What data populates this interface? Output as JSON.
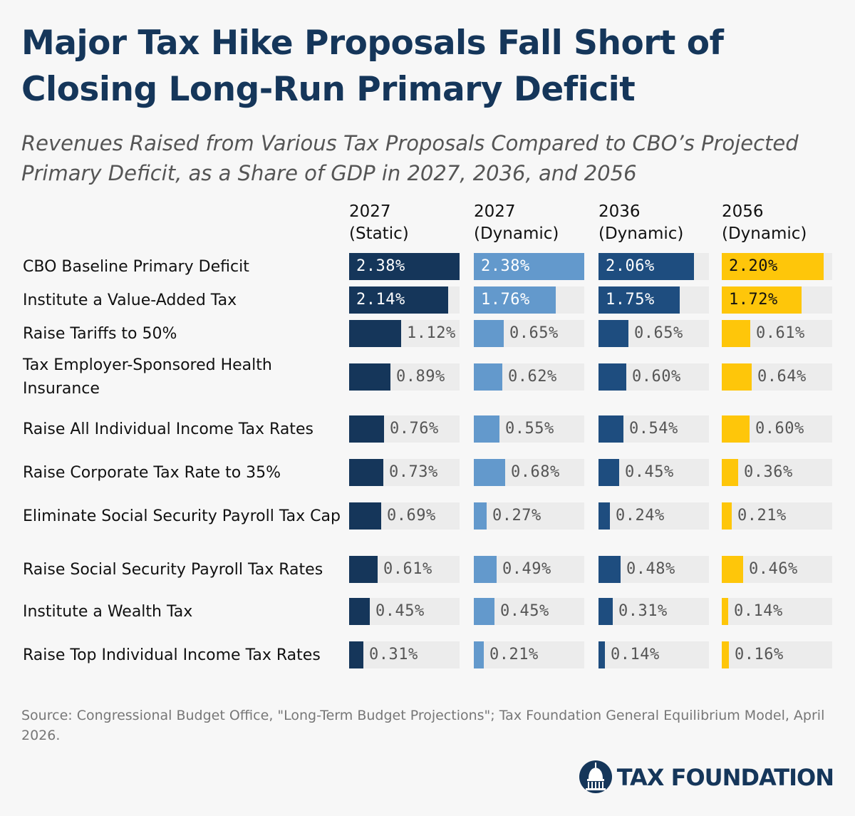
{
  "title": "Major Tax Hike Proposals Fall Short of Closing Long-Run Primary Deficit",
  "subtitle": "Revenues Raised from Various Tax Proposals Compared to CBO’s Projected Primary Deficit, as a Share of GDP in 2027, 2036, and 2056",
  "source": "Source: Congressional Budget Office, \"Long-Term Budget Projections\"; Tax Foundation General Equilibrium Model, April 2026.",
  "logo_text": "TAX FOUNDATION",
  "logo_icon": "capitol-dome-icon",
  "colors": {
    "static_2027": "#15365a",
    "dynamic_2027": "#6399cc",
    "dynamic_2036": "#1e4d7f",
    "dynamic_2056": "#fec60a",
    "track": "#ececec"
  },
  "chart_data": {
    "type": "bar",
    "unit": "% of GDP",
    "columns": [
      {
        "line1": "2027",
        "line2": "(Static)",
        "color": "#15365a"
      },
      {
        "line1": "2027",
        "line2": "(Dynamic)",
        "color": "#6399cc"
      },
      {
        "line1": "2036",
        "line2": "(Dynamic)",
        "color": "#1e4d7f"
      },
      {
        "line1": "2056",
        "line2": "(Dynamic)",
        "color": "#fec60a"
      }
    ],
    "max_value": 2.38,
    "rows": [
      {
        "label": "CBO Baseline Primary Deficit",
        "values": [
          2.38,
          2.38,
          2.06,
          2.2
        ],
        "display": [
          "2.38%",
          "2.38%",
          "2.06%",
          "2.20%"
        ]
      },
      {
        "label": "Institute a Value-Added Tax",
        "values": [
          2.14,
          1.76,
          1.75,
          1.72
        ],
        "display": [
          "2.14%",
          "1.76%",
          "1.75%",
          "1.72%"
        ]
      },
      {
        "label": "Raise Tariffs to 50%",
        "values": [
          1.12,
          0.65,
          0.65,
          0.61
        ],
        "display": [
          "1.12%",
          "0.65%",
          "0.65%",
          "0.61%"
        ]
      },
      {
        "label": "Tax Employer-Sponsored Health Insurance",
        "values": [
          0.89,
          0.62,
          0.6,
          0.64
        ],
        "display": [
          "0.89%",
          "0.62%",
          "0.60%",
          "0.64%"
        ]
      },
      {
        "label": "Raise All Individual Income Tax Rates",
        "values": [
          0.76,
          0.55,
          0.54,
          0.6
        ],
        "display": [
          "0.76%",
          "0.55%",
          "0.54%",
          "0.60%"
        ]
      },
      {
        "label": "Raise Corporate Tax Rate to 35%",
        "values": [
          0.73,
          0.68,
          0.45,
          0.36
        ],
        "display": [
          "0.73%",
          "0.68%",
          "0.45%",
          "0.36%"
        ]
      },
      {
        "label": "Eliminate Social Security Payroll Tax Cap",
        "values": [
          0.69,
          0.27,
          0.24,
          0.21
        ],
        "display": [
          "0.69%",
          "0.27%",
          "0.24%",
          "0.21%"
        ]
      },
      {
        "label": "Raise Social Security Payroll Tax Rates",
        "values": [
          0.61,
          0.49,
          0.48,
          0.46
        ],
        "display": [
          "0.61%",
          "0.49%",
          "0.48%",
          "0.46%"
        ]
      },
      {
        "label": "Institute a Wealth Tax",
        "values": [
          0.45,
          0.45,
          0.31,
          0.14
        ],
        "display": [
          "0.45%",
          "0.45%",
          "0.31%",
          "0.14%"
        ]
      },
      {
        "label": "Raise Top Individual Income Tax Rates",
        "values": [
          0.31,
          0.21,
          0.14,
          0.16
        ],
        "display": [
          "0.31%",
          "0.21%",
          "0.14%",
          "0.16%"
        ]
      }
    ]
  }
}
